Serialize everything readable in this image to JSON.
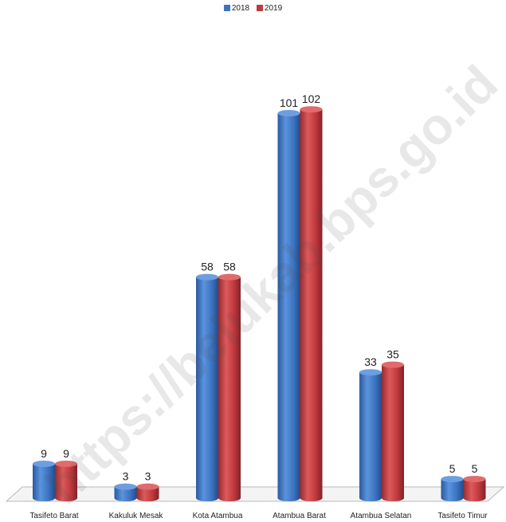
{
  "chart_data": {
    "type": "bar",
    "categories": [
      "Tasifeto Barat",
      "Kakuluk Mesak",
      "Kota Atambua",
      "Atambua Barat",
      "Atambua Selatan",
      "Tasifeto Timur"
    ],
    "series": [
      {
        "name": "2018",
        "values": [
          9,
          3,
          58,
          101,
          33,
          5
        ],
        "color": "#3d74c2"
      },
      {
        "name": "2019",
        "values": [
          9,
          3,
          58,
          102,
          35,
          5
        ],
        "color": "#c0393c"
      }
    ],
    "title": "",
    "xlabel": "",
    "ylabel": "",
    "ylim": [
      0,
      110
    ],
    "grid": false,
    "legend": "top-center",
    "style": "3d-cylinder"
  },
  "watermark": "https://belukab.bps.go.id"
}
